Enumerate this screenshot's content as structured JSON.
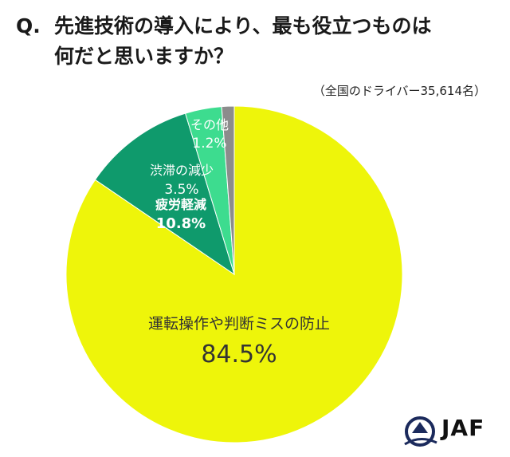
{
  "question": {
    "prefix": "Q.",
    "line1": "先進技術の導入により、最も役立つものは",
    "line2": "何だと思いますか？"
  },
  "sample_note": "（全国のドライバー35,614名）",
  "logo_text": "JAF",
  "chart_data": {
    "type": "pie",
    "slices": [
      {
        "label": "運転操作や判断ミスの防止",
        "value": 84.5,
        "value_label": "84.5%",
        "color": "#eef50a"
      },
      {
        "label": "疲労軽減",
        "value": 10.8,
        "value_label": "10.8%",
        "color": "#0f9a6c"
      },
      {
        "label": "渋滞の減少",
        "value": 3.5,
        "value_label": "3.5%",
        "color": "#3ddc8f"
      },
      {
        "label": "その他",
        "value": 1.2,
        "value_label": "1.2%",
        "color": "#8c8c8c"
      }
    ],
    "start": "12 o'clock",
    "direction": "clockwise from 12 o'clock: 84.5%, 10.8%, 3.5%, 1.2%"
  }
}
